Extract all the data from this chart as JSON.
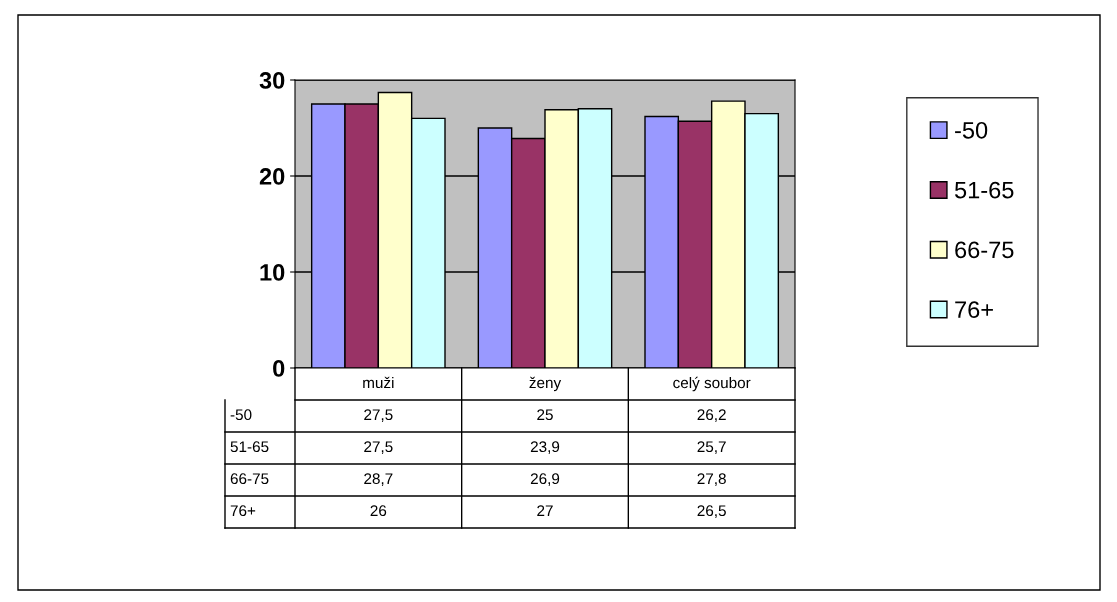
{
  "chart_data": {
    "type": "bar",
    "categories": [
      "muži",
      "ženy",
      "celý soubor"
    ],
    "series": [
      {
        "name": "-50",
        "color": "#9999ff",
        "values": [
          27.5,
          25,
          26.2
        ],
        "value_labels": [
          "27,5",
          "25",
          "26,2"
        ]
      },
      {
        "name": "51-65",
        "color": "#993366",
        "values": [
          27.5,
          23.9,
          25.7
        ],
        "value_labels": [
          "27,5",
          "23,9",
          "25,7"
        ]
      },
      {
        "name": "66-75",
        "color": "#ffffcc",
        "values": [
          28.7,
          26.9,
          27.8
        ],
        "value_labels": [
          "28,7",
          "26,9",
          "27,8"
        ]
      },
      {
        "name": "76+",
        "color": "#ccffff",
        "values": [
          26,
          27,
          26.5
        ],
        "value_labels": [
          "26",
          "27",
          "26,5"
        ]
      }
    ],
    "ylim": [
      0,
      30
    ],
    "yticks": [
      0,
      10,
      20,
      30
    ],
    "grid": "y",
    "legend": "right"
  }
}
